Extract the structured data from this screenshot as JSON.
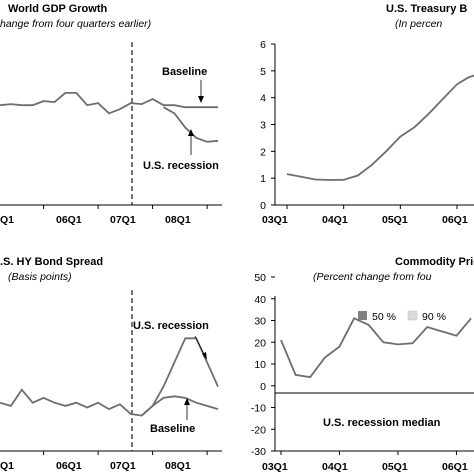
{
  "chart_data": [
    {
      "type": "line",
      "title": "World GDP Growth",
      "subtitle": "hange from four quarters earlier)",
      "x_labels": [
        "06Q1",
        "07Q1",
        "08Q1"
      ],
      "x_label_edge": "Q1",
      "series": [
        {
          "name": "Baseline",
          "x": [
            0,
            0.5,
            1,
            1.5,
            2,
            2.5,
            3,
            3.5,
            4,
            4.5,
            5,
            5.5,
            6,
            6.5,
            7,
            7.5,
            8,
            8.5,
            9,
            9.5,
            10
          ],
          "y": [
            4.9,
            4.95,
            4.9,
            4.9,
            5.1,
            5.05,
            5.5,
            5.5,
            4.9,
            5.0,
            4.5,
            4.7,
            5.0,
            4.95,
            5.2,
            4.9,
            4.9,
            4.8,
            4.8,
            4.8,
            4.8
          ]
        },
        {
          "name": "U.S. recession",
          "x": [
            7.5,
            8,
            8.5,
            9,
            9.5,
            10
          ],
          "y": [
            4.8,
            4.5,
            3.8,
            3.3,
            3.1,
            3.15
          ]
        }
      ],
      "ylim": [
        0,
        8
      ],
      "forecast_divider_x": 6.8,
      "annotations": [
        "Baseline",
        "U.S. recession"
      ]
    },
    {
      "type": "line",
      "title": "U.S. Treasury B",
      "subtitle": "(In percen",
      "x_labels": [
        "03Q1",
        "04Q1",
        "05Q1",
        "06Q1"
      ],
      "y_ticks": [
        "0",
        "1",
        "2",
        "3",
        "4",
        "5",
        "6"
      ],
      "ylim": [
        0,
        6
      ],
      "series": [
        {
          "name": "",
          "x": [
            0,
            0.25,
            0.5,
            0.75,
            1,
            1.25,
            1.5,
            1.75,
            2,
            2.25,
            2.5,
            2.75,
            3,
            3.2,
            3.4
          ],
          "y": [
            1.15,
            1.05,
            0.95,
            0.93,
            0.94,
            1.1,
            1.5,
            2.0,
            2.55,
            2.9,
            3.4,
            3.95,
            4.5,
            4.75,
            4.9
          ]
        }
      ]
    },
    {
      "type": "line",
      "title": ".S. HY Bond Spread",
      "subtitle": "(Basis points)",
      "x_labels": [
        "06Q1",
        "07Q1",
        "08Q1"
      ],
      "x_label_edge": "Q1",
      "series": [
        {
          "name": "U.S. recession",
          "x": [
            0,
            0.5,
            1,
            1.5,
            2,
            2.5,
            3,
            3.5,
            4,
            4.5,
            5,
            5.5,
            6,
            6.5,
            7,
            7.5,
            8,
            8.5,
            9,
            9.5,
            10
          ],
          "y": [
            300,
            280,
            380,
            300,
            330,
            300,
            280,
            300,
            270,
            300,
            260,
            290,
            230,
            220,
            280,
            400,
            550,
            700,
            700,
            550,
            400
          ]
        },
        {
          "name": "Baseline",
          "x": [
            6.5,
            7,
            7.5,
            8,
            8.5,
            9,
            9.5,
            10
          ],
          "y": [
            220,
            280,
            330,
            340,
            330,
            300,
            280,
            260
          ]
        }
      ],
      "ylim": [
        0,
        1000
      ],
      "forecast_divider_x": 6.8,
      "annotations": [
        "U.S. recession",
        "Baseline"
      ]
    },
    {
      "type": "line",
      "title": "Commodity Price",
      "subtitle": "(Percent change from fou",
      "x_labels": [
        "03Q1",
        "04Q1",
        "05Q1",
        "06Q1"
      ],
      "y_ticks": [
        "-30",
        "-20",
        "-10",
        "0",
        "10",
        "20",
        "30",
        "40",
        "50"
      ],
      "ylim": [
        -30,
        50
      ],
      "legend": [
        "50 %",
        "90 %"
      ],
      "legend_colors": [
        "#7f7f7f",
        "#d9d9d9"
      ],
      "median_label": "U.S. recession median",
      "series": [
        {
          "name": "",
          "x": [
            0,
            0.25,
            0.5,
            0.75,
            1,
            1.25,
            1.5,
            1.75,
            2,
            2.25,
            2.5,
            2.75,
            3,
            3.25
          ],
          "y": [
            21,
            5,
            4,
            13,
            18,
            31,
            28,
            20,
            19,
            19.5,
            27,
            25,
            23,
            31
          ]
        }
      ]
    }
  ]
}
